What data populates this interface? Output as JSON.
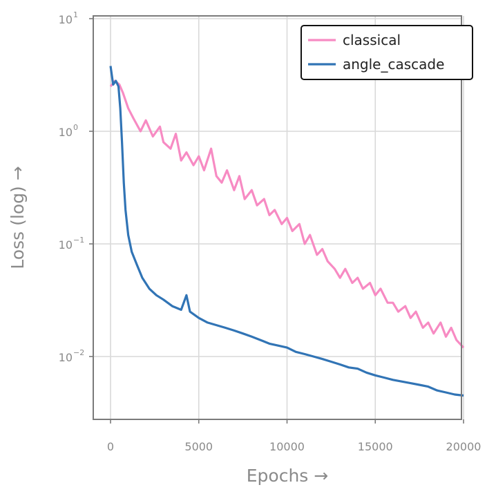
{
  "chart_data": {
    "type": "line",
    "title": "",
    "xlabel": "Epochs →",
    "ylabel": "Loss (log) →",
    "x_ticks": [
      "0",
      "5000",
      "10000",
      "15000",
      "20000"
    ],
    "y_ticks": [
      {
        "value": 10,
        "base": "10",
        "exp": "1"
      },
      {
        "value": 1,
        "base": "10",
        "exp": "0"
      },
      {
        "value": 0.1,
        "base": "10",
        "exp": "−1"
      },
      {
        "value": 0.01,
        "base": "10",
        "exp": "−2"
      }
    ],
    "xlim": [
      -1000,
      20000
    ],
    "ylim": [
      0.0027,
      10
    ],
    "yscale": "log",
    "grid": true,
    "legend_position": "top-right",
    "series": [
      {
        "name": "classical",
        "color": "#f78bc3",
        "points": [
          [
            0,
            2.5
          ],
          [
            250,
            2.8
          ],
          [
            500,
            2.6
          ],
          [
            700,
            2.2
          ],
          [
            1000,
            1.6
          ],
          [
            1300,
            1.3
          ],
          [
            1700,
            1.0
          ],
          [
            2000,
            1.25
          ],
          [
            2400,
            0.9
          ],
          [
            2800,
            1.1
          ],
          [
            3000,
            0.8
          ],
          [
            3400,
            0.7
          ],
          [
            3700,
            0.95
          ],
          [
            4000,
            0.55
          ],
          [
            4300,
            0.65
          ],
          [
            4700,
            0.5
          ],
          [
            5000,
            0.6
          ],
          [
            5300,
            0.45
          ],
          [
            5700,
            0.7
          ],
          [
            6000,
            0.4
          ],
          [
            6300,
            0.35
          ],
          [
            6600,
            0.45
          ],
          [
            7000,
            0.3
          ],
          [
            7300,
            0.4
          ],
          [
            7600,
            0.25
          ],
          [
            8000,
            0.3
          ],
          [
            8300,
            0.22
          ],
          [
            8700,
            0.25
          ],
          [
            9000,
            0.18
          ],
          [
            9300,
            0.2
          ],
          [
            9700,
            0.15
          ],
          [
            10000,
            0.17
          ],
          [
            10300,
            0.13
          ],
          [
            10700,
            0.15
          ],
          [
            11000,
            0.1
          ],
          [
            11300,
            0.12
          ],
          [
            11700,
            0.08
          ],
          [
            12000,
            0.09
          ],
          [
            12300,
            0.07
          ],
          [
            12700,
            0.06
          ],
          [
            13000,
            0.05
          ],
          [
            13300,
            0.06
          ],
          [
            13700,
            0.045
          ],
          [
            14000,
            0.05
          ],
          [
            14300,
            0.04
          ],
          [
            14700,
            0.045
          ],
          [
            15000,
            0.035
          ],
          [
            15300,
            0.04
          ],
          [
            15700,
            0.03
          ],
          [
            16000,
            0.03
          ],
          [
            16300,
            0.025
          ],
          [
            16700,
            0.028
          ],
          [
            17000,
            0.022
          ],
          [
            17300,
            0.025
          ],
          [
            17700,
            0.018
          ],
          [
            18000,
            0.02
          ],
          [
            18300,
            0.016
          ],
          [
            18700,
            0.02
          ],
          [
            19000,
            0.015
          ],
          [
            19300,
            0.018
          ],
          [
            19600,
            0.014
          ],
          [
            20000,
            0.012
          ]
        ]
      },
      {
        "name": "angle_cascade",
        "color": "#3174b5",
        "points": [
          [
            0,
            3.8
          ],
          [
            150,
            2.6
          ],
          [
            300,
            2.8
          ],
          [
            450,
            2.5
          ],
          [
            550,
            1.6
          ],
          [
            650,
            0.8
          ],
          [
            750,
            0.35
          ],
          [
            850,
            0.2
          ],
          [
            1000,
            0.12
          ],
          [
            1200,
            0.085
          ],
          [
            1500,
            0.065
          ],
          [
            1800,
            0.05
          ],
          [
            2200,
            0.04
          ],
          [
            2600,
            0.035
          ],
          [
            3000,
            0.032
          ],
          [
            3500,
            0.028
          ],
          [
            4000,
            0.026
          ],
          [
            4300,
            0.035
          ],
          [
            4500,
            0.025
          ],
          [
            5000,
            0.022
          ],
          [
            5500,
            0.02
          ],
          [
            6000,
            0.019
          ],
          [
            6500,
            0.018
          ],
          [
            7000,
            0.017
          ],
          [
            7500,
            0.016
          ],
          [
            8000,
            0.015
          ],
          [
            8500,
            0.014
          ],
          [
            9000,
            0.013
          ],
          [
            9500,
            0.0125
          ],
          [
            10000,
            0.012
          ],
          [
            10500,
            0.011
          ],
          [
            11000,
            0.0105
          ],
          [
            11500,
            0.01
          ],
          [
            12000,
            0.0095
          ],
          [
            12500,
            0.009
          ],
          [
            13000,
            0.0085
          ],
          [
            13500,
            0.008
          ],
          [
            14000,
            0.0078
          ],
          [
            14500,
            0.0072
          ],
          [
            15000,
            0.0068
          ],
          [
            15500,
            0.0065
          ],
          [
            16000,
            0.0062
          ],
          [
            16500,
            0.006
          ],
          [
            17000,
            0.0058
          ],
          [
            17500,
            0.0056
          ],
          [
            18000,
            0.0054
          ],
          [
            18500,
            0.005
          ],
          [
            19000,
            0.0048
          ],
          [
            19500,
            0.0046
          ],
          [
            20000,
            0.0045
          ]
        ]
      }
    ]
  }
}
